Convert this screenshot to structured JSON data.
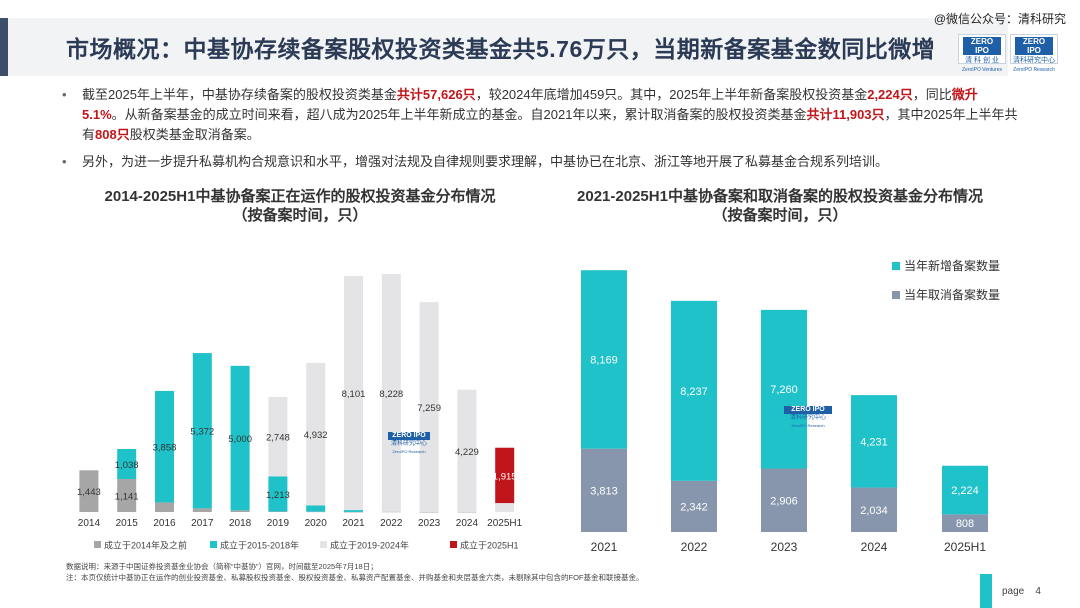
{
  "header": {
    "title": "市场概况：中基协存续备案股权投资类基金共5.76万只，当期新备案基金数同比微增",
    "wechat": "@微信公众号：清科研究"
  },
  "logos": [
    {
      "top": "ZERO IPO",
      "line1": "清 科 创 业",
      "line2": "ZeroIPO Ventures"
    },
    {
      "top": "ZERO IPO",
      "line1": "清科研究中心",
      "line2": "ZeroIPO Research"
    }
  ],
  "bullets": {
    "b1_parts": [
      "截至2025年上半年，中基协存续备案的股权投资类基金",
      "共计57,626只",
      "，较2024年底增加459只。其中，2025年上半年新备案股权投资基金",
      "2,224只",
      "，同比",
      "微升5.1%",
      "。从新备案基金的成立时间来看，超八成为2025年上半年新成立的基金。自2021年以来，累计取消备案的股权投资类基金",
      "共计11,903只",
      "，其中2025年上半年共有",
      "808只",
      "股权类基金取消备案。"
    ],
    "b2": "另外，为进一步提升私募机构合规意识和水平，增强对法规及自律规则要求理解，中基协已在北京、浙江等地开展了私募基金合规系列培训。"
  },
  "charts_titles": {
    "left": [
      "2014-2025H1中基协备案正在运作的股权投资基金分布情况",
      "（按备案时间，只）"
    ],
    "right": [
      "2021-2025H1中基协备案和取消备案的股权投资基金分布情况",
      "（按备案时间，只）"
    ]
  },
  "watermark": {
    "top": "ZERO IPO",
    "line1": "清科研究中心",
    "line2": "ZeroIPO Research"
  },
  "chart_data": [
    {
      "type": "bar",
      "stacked": true,
      "title": "2014-2025H1中基协备案正在运作的股权投资基金分布情况",
      "subtitle": "（按备案时间，只）",
      "categories": [
        "2014",
        "2015",
        "2016",
        "2017",
        "2018",
        "2019",
        "2020",
        "2021",
        "2022",
        "2023",
        "2024",
        "2025H1"
      ],
      "series": [
        {
          "name": "成立于2014年及之前",
          "color": "#a6a6a6",
          "values": [
            1443,
            1141,
            331,
            127,
            57,
            19,
            13,
            2,
            9,
            1,
            2,
            null
          ]
        },
        {
          "name": "成立于2015-2018年",
          "color": "#1fc2c8",
          "values": [
            null,
            1038,
            3858,
            5372,
            5000,
            1213,
            214,
            65,
            null,
            null,
            null,
            null
          ]
        },
        {
          "name": "成立于2019-2024年",
          "color": "#e4e4e6",
          "values": [
            null,
            null,
            null,
            null,
            null,
            2748,
            4932,
            8101,
            8228,
            7259,
            4229,
            309
          ]
        },
        {
          "name": "成立于2025H1",
          "color": "#c0161b",
          "values": [
            null,
            null,
            null,
            null,
            null,
            null,
            null,
            null,
            null,
            null,
            null,
            1915
          ]
        }
      ],
      "legend_position": "bottom"
    },
    {
      "type": "bar",
      "stacked": true,
      "title": "2021-2025H1中基协备案和取消备案的股权投资基金分布情况",
      "subtitle": "（按备案时间，只）",
      "categories": [
        "2021",
        "2022",
        "2023",
        "2024",
        "2025H1"
      ],
      "series": [
        {
          "name": "当年新增备案数量",
          "color": "#1fc2c8",
          "values": [
            8169,
            8237,
            7260,
            4231,
            2224
          ]
        },
        {
          "name": "当年取消备案数量",
          "color": "#8796ad",
          "values": [
            3813,
            2342,
            2906,
            2034,
            808
          ]
        }
      ],
      "legend_position": "top-right"
    }
  ],
  "footnotes": [
    "数据说明：来源于中国证券投资基金业协会（简称“中基协”）官网，时间截至2025年7月18日；",
    "注：本页仅统计中基协正在运作的创业投资基金、私募股权投资基金、股权投资基金、私募资产配置基金、并购基金和夹层基金六类，未剔除其中包含的FOF基金和联接基金。"
  ],
  "page": {
    "label": "page",
    "number": "4"
  }
}
